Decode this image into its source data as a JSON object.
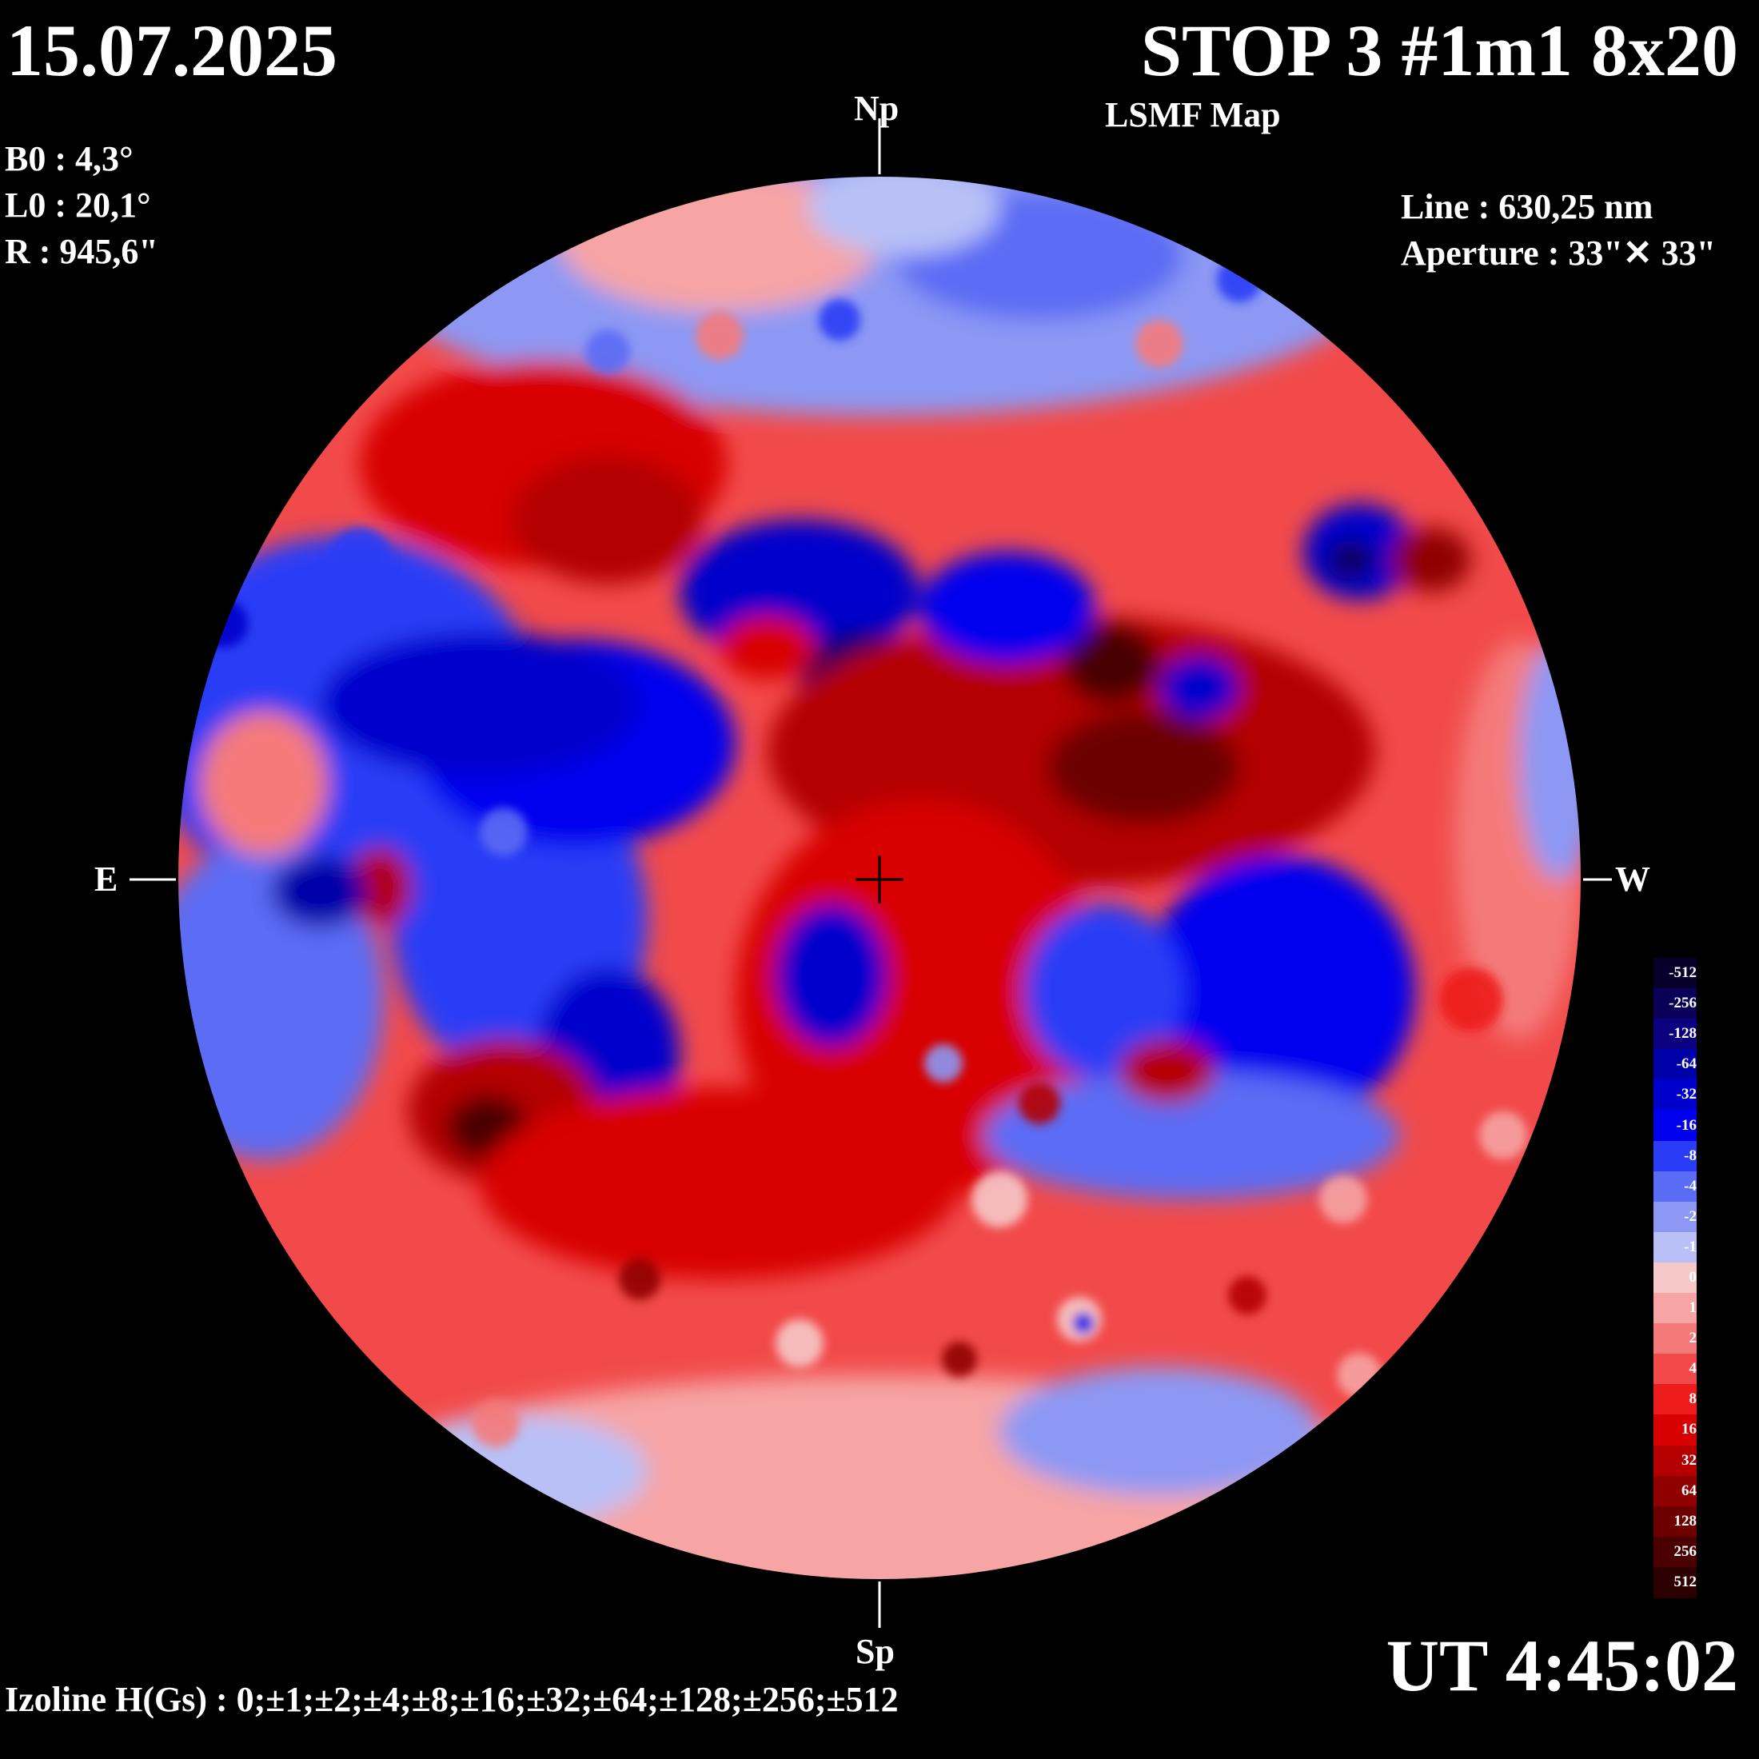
{
  "header": {
    "date": "15.07.2025",
    "title": "STOP 3 #1m1 8x20",
    "subtitle": "LSMF  Map"
  },
  "params": {
    "b0": "B0 : 4,3°",
    "l0": "L0 : 20,1°",
    "r": "R  : 945,6\""
  },
  "instrument": {
    "line": "Line :  630,25 nm",
    "aperture": "Aperture : 33\"✕ 33\""
  },
  "directions": {
    "north": "Np",
    "south": "Sp",
    "east": "E",
    "west": "W"
  },
  "time": "UT 4:45:02",
  "izoline": "Izoline H(Gs) : 0;±1;±2;±4;±8;±16;±32;±64;±128;±256;±512",
  "colorbar": {
    "levels": [
      {
        "label": "-512",
        "color": "#07002a"
      },
      {
        "label": "-256",
        "color": "#0a0058"
      },
      {
        "label": "-128",
        "color": "#0a0080"
      },
      {
        "label": "-64",
        "color": "#0000a8"
      },
      {
        "label": "-32",
        "color": "#0000cc"
      },
      {
        "label": "-16",
        "color": "#0000ee"
      },
      {
        "label": "-8",
        "color": "#2a3cf6"
      },
      {
        "label": "-4",
        "color": "#5b6cf4"
      },
      {
        "label": "-2",
        "color": "#8c98f4"
      },
      {
        "label": "-1",
        "color": "#b8c0f6"
      },
      {
        "label": "0",
        "color": "#f6c8c8"
      },
      {
        "label": "1",
        "color": "#f6a4a4"
      },
      {
        "label": "2",
        "color": "#f47a7a"
      },
      {
        "label": "4",
        "color": "#f24a4a"
      },
      {
        "label": "8",
        "color": "#ee1c1c"
      },
      {
        "label": "16",
        "color": "#d80000"
      },
      {
        "label": "32",
        "color": "#b40000"
      },
      {
        "label": "64",
        "color": "#900000"
      },
      {
        "label": "128",
        "color": "#6c0000"
      },
      {
        "label": "256",
        "color": "#4a0000"
      },
      {
        "label": "512",
        "color": "#2c0000"
      }
    ]
  },
  "colors": {
    "background": "#000000",
    "negative_strong": "#0000cc",
    "positive_strong": "#d80000",
    "negative_weak": "#8c98f4",
    "positive_weak": "#f6a4a4"
  }
}
